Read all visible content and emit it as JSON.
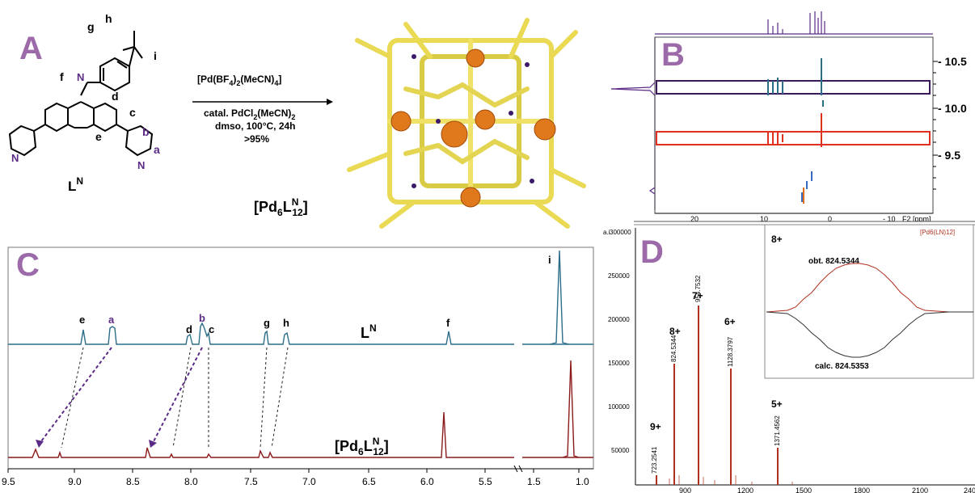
{
  "panelA": {
    "letter": "A",
    "labels": {
      "g": "g",
      "h": "h",
      "i": "i",
      "f": "f",
      "d": "d",
      "c": "c",
      "e": "e",
      "b": "b",
      "a": "a",
      "N1": "N",
      "N2": "N",
      "N3": "N"
    },
    "ligand": "L",
    "ligand_sup": "N",
    "reagent": "[Pd(BF",
    "reagent_sub4": "4",
    "reagent_mid": ")",
    "reagent_sub2": "2",
    "reagent_end": "(MeCN)",
    "reagent_sub4b": "4",
    "reagent_close": "]",
    "cond1": "catal. PdCl",
    "cond1_sub": "2",
    "cond1_end": "(MeCN)",
    "cond1_sub2": "2",
    "cond2": "dmso, 100°C, 24h",
    "cond3": ">95%",
    "product_a": "[Pd",
    "product_sub6": "6",
    "product_L": "L",
    "product_supN": "N",
    "product_sub12": "12",
    "product_close": "]"
  },
  "panelB": {
    "letter": "B",
    "right_ticks": [
      "- 10.5",
      "- 10.0",
      "- 9.5"
    ],
    "x_ticks": [
      "20",
      "10",
      "0",
      "- 10",
      "F2 [ppm]"
    ]
  },
  "panelC": {
    "letter": "C",
    "top_labels": {
      "e": "e",
      "a": "a",
      "d": "d",
      "b": "b",
      "c": "c",
      "g": "g",
      "h": "h",
      "f": "f",
      "i": "i"
    },
    "trace_top": "L",
    "trace_top_sup": "N",
    "trace_bottom_a": "[Pd",
    "trace_bottom_sub6": "6",
    "trace_bottom_L": "L",
    "trace_bottom_supN": "N",
    "trace_bottom_sub12": "12",
    "trace_bottom_close": "]",
    "x_ticks": [
      "9.5",
      "9.0",
      "8.5",
      "8.0",
      "7.5",
      "7.0",
      "6.5",
      "6.0",
      "5.5",
      "1.5",
      "1.0"
    ],
    "colors": {
      "top": "#2c6e8a",
      "bottom": "#8b1a1a",
      "arrow": "#5b2a86"
    }
  },
  "panelD": {
    "letter": "D",
    "y_axis_unit": "a.i.",
    "y_ticks": [
      "300000",
      "250000",
      "200000",
      "150000",
      "100000",
      "50000"
    ],
    "x_ticks": [
      "900",
      "1200",
      "1500",
      "1800",
      "2100",
      "240"
    ],
    "peaks": [
      {
        "charge": "9+",
        "mz": "723.2541"
      },
      {
        "charge": "8+",
        "mz": "824.5344"
      },
      {
        "charge": "7+",
        "mz": "954.7532"
      },
      {
        "charge": "6+",
        "mz": "1128.3797"
      },
      {
        "charge": "5+",
        "mz": "1371.4562"
      }
    ],
    "inset": {
      "charge": "8+",
      "legend": "[Pd6(LN)12]",
      "obt": "obt. 824.5344",
      "calc": "calc. 824.5353"
    },
    "colors": {
      "spectrum": "#b03020",
      "calc": "#333333"
    }
  }
}
